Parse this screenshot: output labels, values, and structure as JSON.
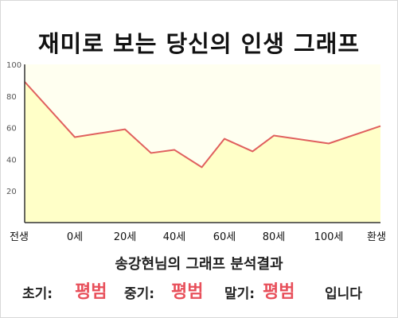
{
  "title": "재미로 보는 당신의 인생 그래프",
  "summary": "송강현님의 그래프 분석결과",
  "results": {
    "early_label": "초기:",
    "early_value": "평범",
    "middle_label": "중기:",
    "middle_value": "평범",
    "late_label": "말기:",
    "late_value": "평범",
    "suffix": "입니다"
  },
  "colors": {
    "line": "#e0605e",
    "fill": "#ffffc8",
    "plot_bg": "#fffff0",
    "accent_text": "#e8505b"
  },
  "chart_data": {
    "type": "area",
    "title": "재미로 보는 당신의 인생 그래프",
    "xlabel": "",
    "ylabel": "",
    "ylim": [
      0,
      100
    ],
    "y_ticks": [
      20,
      40,
      60,
      80,
      100
    ],
    "x_tick_labels": [
      "전생",
      "0세",
      "20세",
      "40세",
      "60세",
      "80세",
      "100세",
      "환생"
    ],
    "grid": false,
    "legend": "none",
    "series": [
      {
        "x": [
          "전생",
          "0세",
          "20세",
          "30세",
          "40세",
          "50세",
          "60세",
          "70세",
          "80세",
          "100세",
          "환생"
        ],
        "y": [
          89,
          54,
          59,
          44,
          46,
          35,
          53,
          45,
          55,
          50,
          61
        ]
      }
    ]
  }
}
